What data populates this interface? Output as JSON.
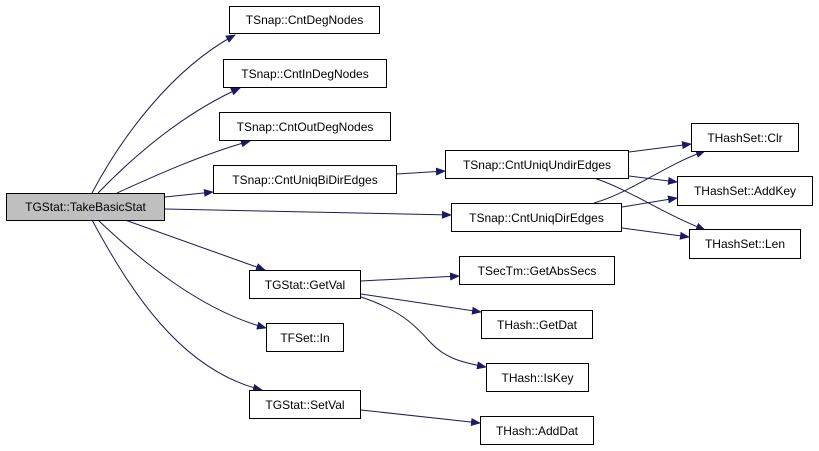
{
  "edge_color": "#191970",
  "root_fill": "#bfbfbf",
  "nodes": {
    "take": {
      "label": "TGStat::TakeBasicStat",
      "root": true
    },
    "deg": {
      "label": "TSnap::CntDegNodes"
    },
    "indeg": {
      "label": "TSnap::CntInDegNodes"
    },
    "outdeg": {
      "label": "TSnap::CntOutDegNodes"
    },
    "bidir": {
      "label": "TSnap::CntUniqBiDirEdges"
    },
    "getval": {
      "label": "TGStat::GetVal"
    },
    "in": {
      "label": "TFSet::In"
    },
    "setval": {
      "label": "TGStat::SetVal"
    },
    "undir": {
      "label": "TSnap::CntUniqUndirEdges"
    },
    "dir": {
      "label": "TSnap::CntUniqDirEdges"
    },
    "abssecs": {
      "label": "TSecTm::GetAbsSecs"
    },
    "getdat": {
      "label": "THash::GetDat"
    },
    "iskey": {
      "label": "THash::IsKey"
    },
    "adddat": {
      "label": "THash::AddDat"
    },
    "clr": {
      "label": "THashSet::Clr"
    },
    "addkey": {
      "label": "THashSet::AddKey"
    },
    "len": {
      "label": "THashSet::Len"
    }
  },
  "edges": [
    {
      "from": "take",
      "to": "deg"
    },
    {
      "from": "take",
      "to": "indeg"
    },
    {
      "from": "take",
      "to": "outdeg"
    },
    {
      "from": "take",
      "to": "bidir"
    },
    {
      "from": "take",
      "to": "dir"
    },
    {
      "from": "take",
      "to": "getval"
    },
    {
      "from": "take",
      "to": "in"
    },
    {
      "from": "take",
      "to": "setval"
    },
    {
      "from": "bidir",
      "to": "undir"
    },
    {
      "from": "undir",
      "to": "clr"
    },
    {
      "from": "undir",
      "to": "addkey"
    },
    {
      "from": "undir",
      "to": "len"
    },
    {
      "from": "dir",
      "to": "clr"
    },
    {
      "from": "dir",
      "to": "addkey"
    },
    {
      "from": "dir",
      "to": "len"
    },
    {
      "from": "getval",
      "to": "abssecs"
    },
    {
      "from": "getval",
      "to": "getdat"
    },
    {
      "from": "getval",
      "to": "iskey"
    },
    {
      "from": "setval",
      "to": "adddat"
    }
  ]
}
